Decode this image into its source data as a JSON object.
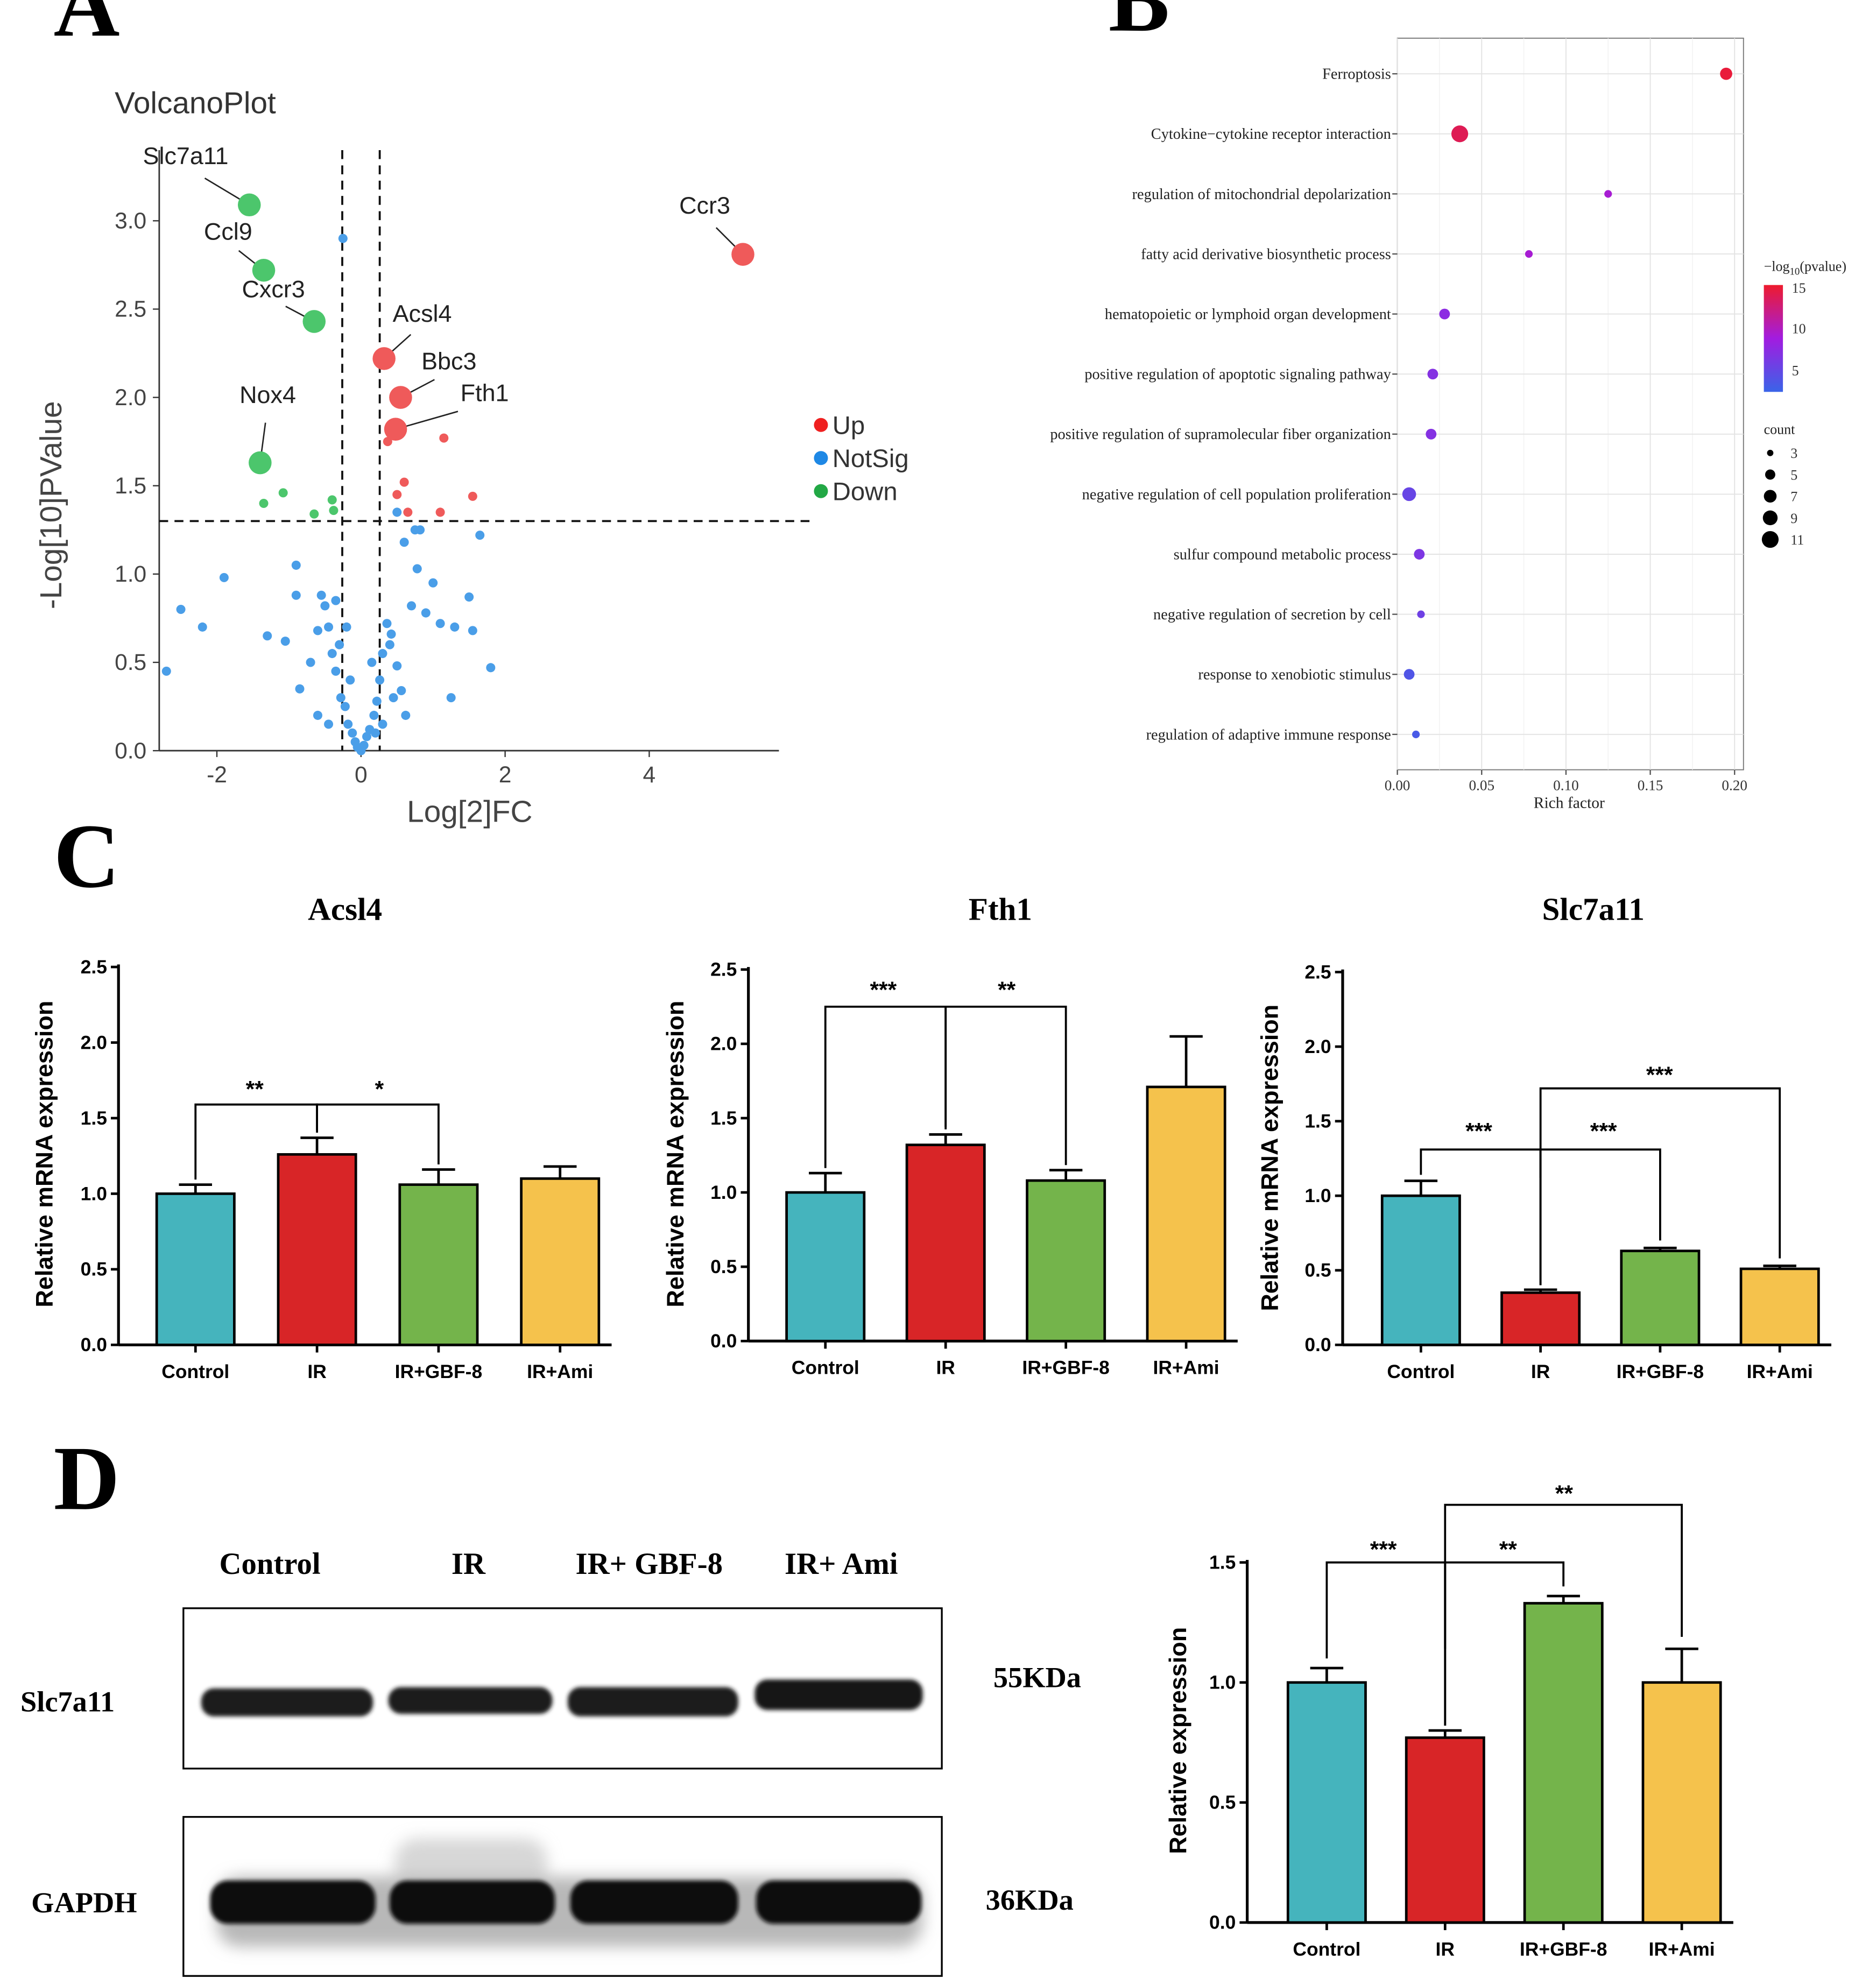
{
  "panel_labels": {
    "a": "A",
    "b": "B",
    "c": "C",
    "d": "D"
  },
  "colors": {
    "up": "#ef5a5a",
    "notsig": "#4a9ee8",
    "down": "#4cc66c",
    "control": "#45b4bd",
    "ir": "#d82527",
    "gbf": "#74b44b",
    "ami": "#f5c24c",
    "grad_low": "#3a64e8",
    "grad_mid": "#a21ce0",
    "grad_high": "#ee1b2e"
  },
  "volcano": {
    "title": "VolcanoPlot",
    "xlabel": "Log[2]FC",
    "ylabel": "-Log[10]PValue",
    "xticks": [
      "-2",
      "0",
      "2",
      "4"
    ],
    "yticks": [
      "0.0",
      "0.5",
      "1.0",
      "1.5",
      "2.0",
      "2.5",
      "3.0"
    ],
    "legend": [
      "Up",
      "NotSig",
      "Down"
    ],
    "labels": [
      "Slc7a11",
      "Ccl9",
      "Cxcr3",
      "Nox4",
      "Acsl4",
      "Bbc3",
      "Fth1",
      "Ccr3"
    ]
  },
  "enrichment": {
    "xlabel": "Rich factor",
    "xticks": [
      "0.00",
      "0.05",
      "0.10",
      "0.15",
      "0.20"
    ],
    "legend_title_pre": "−log",
    "legend_title_sub": "10",
    "legend_title_post": "(pvalue)",
    "color_ticks": [
      "15",
      "10",
      "5"
    ],
    "count_title": "count",
    "count_ticks": [
      "3",
      "5",
      "7",
      "9",
      "11"
    ]
  },
  "mrna": {
    "ylabel": "Relative mRNA expression",
    "groups": [
      "Control",
      "IR",
      "IR+GBF-8",
      "IR+Ami"
    ],
    "yticks": [
      "0.0",
      "0.5",
      "1.0",
      "1.5",
      "2.0",
      "2.5"
    ],
    "titles": [
      "Acsl4",
      "Fth1",
      "Slc7a11"
    ],
    "sig": {
      "acsl4": [
        "**",
        "*"
      ],
      "fth1": [
        "***",
        "**"
      ],
      "slc7a11": [
        "***",
        "***",
        "***"
      ]
    }
  },
  "western": {
    "lane_labels": [
      "Control",
      "IR",
      "IR+ GBF-8",
      "IR+ Ami"
    ],
    "row_labels": [
      "Slc7a11",
      "GAPDH"
    ],
    "kda": [
      "55KDa",
      "36KDa"
    ],
    "ylabel": "Relative expression",
    "groups": [
      "Control",
      "IR",
      "IR+GBF-8",
      "IR+Ami"
    ],
    "yticks": [
      "0.0",
      "0.5",
      "1.0",
      "1.5"
    ],
    "sig": [
      "**",
      "***",
      "**"
    ]
  },
  "chart_data": [
    {
      "type": "scatter",
      "title": "VolcanoPlot",
      "xlabel": "Log[2]FC",
      "ylabel": "-Log[10]PValue",
      "xlim": [
        -2.8,
        5.8
      ],
      "ylim": [
        0,
        3.4
      ],
      "thresholds": {
        "x": [
          -0.26,
          0.26
        ],
        "y": 1.3
      },
      "labeled_points": [
        {
          "name": "Slc7a11",
          "x": -1.55,
          "y": 3.09,
          "class": "Down"
        },
        {
          "name": "Ccl9",
          "x": -1.35,
          "y": 2.72,
          "class": "Down"
        },
        {
          "name": "Cxcr3",
          "x": -0.65,
          "y": 2.43,
          "class": "Down"
        },
        {
          "name": "Nox4",
          "x": -1.4,
          "y": 1.63,
          "class": "Down"
        },
        {
          "name": "Acsl4",
          "x": 0.32,
          "y": 2.22,
          "class": "Up"
        },
        {
          "name": "Bbc3",
          "x": 0.55,
          "y": 2.0,
          "class": "Up"
        },
        {
          "name": "Fth1",
          "x": 0.48,
          "y": 1.82,
          "class": "Up"
        },
        {
          "name": "Ccr3",
          "x": 5.3,
          "y": 2.81,
          "class": "Up"
        }
      ],
      "up_points": [
        [
          1.15,
          1.77
        ],
        [
          0.37,
          1.75
        ],
        [
          0.6,
          1.52
        ],
        [
          0.5,
          1.45
        ],
        [
          1.55,
          1.44
        ],
        [
          0.65,
          1.35
        ],
        [
          1.1,
          1.35
        ]
      ],
      "down_points": [
        [
          -1.08,
          1.46
        ],
        [
          -1.35,
          1.4
        ],
        [
          -0.4,
          1.42
        ],
        [
          -0.38,
          1.36
        ],
        [
          -0.65,
          1.34
        ]
      ],
      "notsig_points": [
        [
          -0.25,
          2.9
        ],
        [
          -2.7,
          0.45
        ],
        [
          -2.5,
          0.8
        ],
        [
          -2.2,
          0.7
        ],
        [
          -1.9,
          0.98
        ],
        [
          -1.3,
          0.65
        ],
        [
          -1.05,
          0.62
        ],
        [
          -0.9,
          1.05
        ],
        [
          -0.85,
          0.35
        ],
        [
          -0.9,
          0.88
        ],
        [
          -0.55,
          0.88
        ],
        [
          -0.5,
          0.82
        ],
        [
          -0.45,
          0.7
        ],
        [
          -0.4,
          0.55
        ],
        [
          -0.35,
          0.45
        ],
        [
          -0.3,
          0.6
        ],
        [
          -0.28,
          0.3
        ],
        [
          -0.22,
          0.25
        ],
        [
          -0.18,
          0.15
        ],
        [
          -0.12,
          0.1
        ],
        [
          -0.08,
          0.05
        ],
        [
          -0.05,
          0.02
        ],
        [
          0.0,
          0.0
        ],
        [
          0.04,
          0.03
        ],
        [
          0.08,
          0.08
        ],
        [
          0.12,
          0.12
        ],
        [
          0.18,
          0.2
        ],
        [
          0.22,
          0.28
        ],
        [
          0.26,
          0.4
        ],
        [
          0.3,
          0.55
        ],
        [
          0.36,
          0.72
        ],
        [
          0.42,
          0.66
        ],
        [
          0.5,
          0.48
        ],
        [
          0.56,
          0.34
        ],
        [
          0.62,
          0.2
        ],
        [
          0.7,
          0.82
        ],
        [
          0.78,
          1.03
        ],
        [
          0.9,
          0.78
        ],
        [
          1.0,
          0.95
        ],
        [
          1.1,
          0.72
        ],
        [
          1.3,
          0.7
        ],
        [
          1.5,
          0.87
        ],
        [
          1.55,
          0.68
        ],
        [
          1.65,
          1.22
        ],
        [
          1.8,
          0.47
        ],
        [
          1.25,
          0.3
        ],
        [
          0.6,
          1.18
        ],
        [
          0.75,
          1.25
        ],
        [
          0.82,
          1.25
        ],
        [
          0.5,
          1.35
        ],
        [
          0.4,
          0.6
        ],
        [
          -0.7,
          0.5
        ],
        [
          -0.6,
          0.2
        ],
        [
          -0.15,
          0.4
        ],
        [
          0.15,
          0.5
        ],
        [
          0.2,
          0.1
        ],
        [
          -0.2,
          0.7
        ],
        [
          -0.35,
          0.85
        ],
        [
          0.45,
          0.3
        ],
        [
          0.3,
          0.15
        ],
        [
          -0.45,
          0.15
        ],
        [
          -0.6,
          0.68
        ]
      ]
    },
    {
      "type": "scatter",
      "title": "",
      "xlabel": "Rich factor",
      "xlim": [
        0.0,
        0.2
      ],
      "categories": [
        "Ferroptosis",
        "Cytokine−cytokine receptor interaction",
        "regulation of mitochondrial depolarization",
        "fatty acid derivative biosynthetic process",
        "hematopoietic or lymphoid organ development",
        "positive regulation of apoptotic signaling pathway",
        "positive regulation of supramolecular fiber organization",
        "negative regulation of cell population proliferation",
        "sulfur compound metabolic process",
        "negative regulation of secretion by cell",
        "response to xenobiotic stimulus",
        "regulation of adaptive immune response"
      ],
      "rich_factor": [
        0.195,
        0.037,
        0.125,
        0.078,
        0.028,
        0.021,
        0.02,
        0.007,
        0.013,
        0.014,
        0.007,
        0.011
      ],
      "count": [
        6,
        9,
        3,
        3,
        5,
        5,
        5,
        7,
        5,
        3,
        5,
        3
      ],
      "neg_log10_pvalue": [
        15.5,
        14.5,
        9.5,
        9.5,
        7.5,
        7.0,
        7.0,
        5.0,
        6.5,
        5.5,
        3.5,
        3.0
      ],
      "color_range": [
        2,
        16
      ]
    },
    {
      "type": "bar",
      "title": "Acsl4",
      "categories": [
        "Control",
        "IR",
        "IR+GBF-8",
        "IR+Ami"
      ],
      "values": [
        1.0,
        1.26,
        1.06,
        1.1
      ],
      "errors": [
        0.06,
        0.11,
        0.1,
        0.08
      ],
      "ylabel": "Relative mRNA expression",
      "ylim": [
        0,
        2.5
      ]
    },
    {
      "type": "bar",
      "title": "Fth1",
      "categories": [
        "Control",
        "IR",
        "IR+GBF-8",
        "IR+Ami"
      ],
      "values": [
        1.0,
        1.32,
        1.08,
        1.71
      ],
      "errors": [
        0.13,
        0.07,
        0.07,
        0.34
      ],
      "ylabel": "Relative mRNA expression",
      "ylim": [
        0,
        2.5
      ]
    },
    {
      "type": "bar",
      "title": "Slc7a11",
      "categories": [
        "Control",
        "IR",
        "IR+GBF-8",
        "IR+Ami"
      ],
      "values": [
        1.0,
        0.35,
        0.63,
        0.51
      ],
      "errors": [
        0.1,
        0.02,
        0.02,
        0.02
      ],
      "ylabel": "Relative mRNA expression",
      "ylim": [
        0,
        2.5
      ]
    },
    {
      "type": "bar",
      "title": "",
      "categories": [
        "Control",
        "IR",
        "IR+GBF-8",
        "IR+Ami"
      ],
      "values": [
        1.0,
        0.77,
        1.33,
        1.0
      ],
      "errors": [
        0.06,
        0.03,
        0.03,
        0.14
      ],
      "ylabel": "Relative expression",
      "ylim": [
        0,
        1.5
      ]
    }
  ]
}
